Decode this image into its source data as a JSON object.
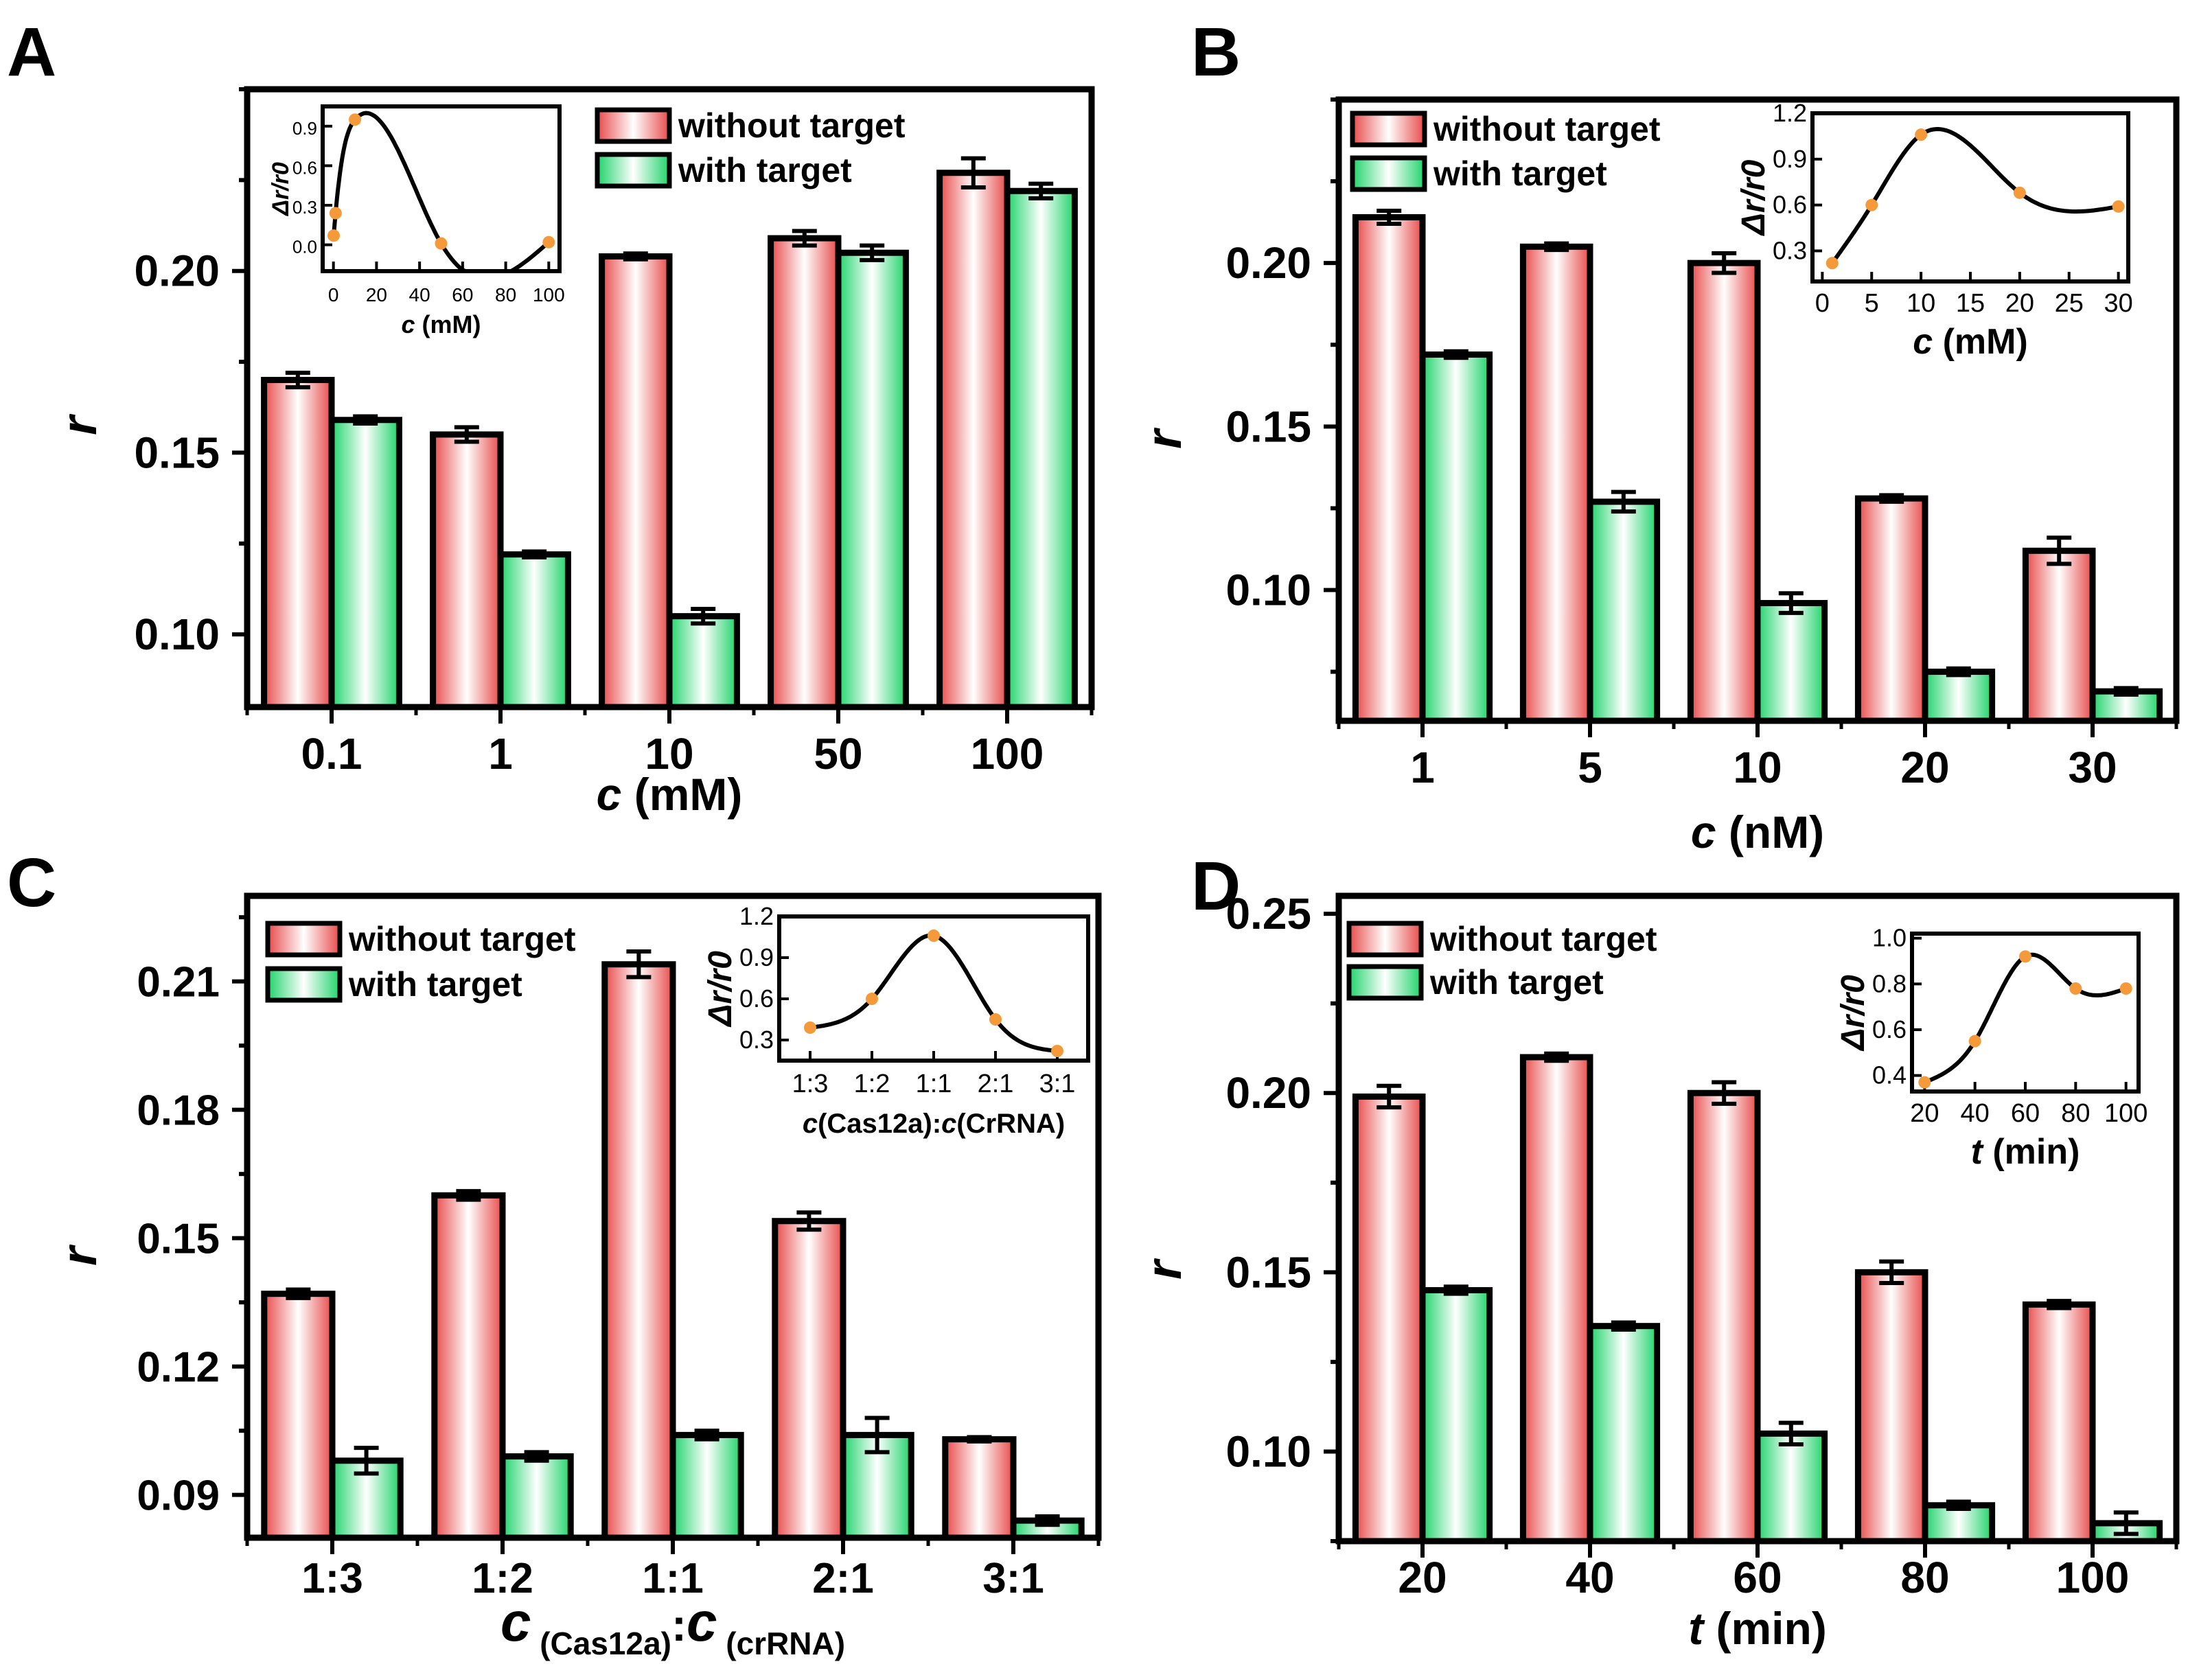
{
  "chart_data": [
    {
      "panel_label": "A",
      "type": "bar",
      "categories": [
        "0.1",
        "1",
        "10",
        "50",
        "100"
      ],
      "series": [
        {
          "name": "without target",
          "values": [
            0.17,
            0.155,
            0.204,
            0.209,
            0.227
          ],
          "errors": [
            0.002,
            0.002,
            0.0008,
            0.002,
            0.004
          ]
        },
        {
          "name": "with target",
          "values": [
            0.159,
            0.122,
            0.105,
            0.205,
            0.222
          ],
          "errors": [
            0.001,
            0.0008,
            0.002,
            0.002,
            0.002
          ]
        }
      ],
      "yticks": [
        "0.10",
        "0.15",
        "0.20"
      ],
      "ylim": [
        0.08,
        0.25
      ],
      "ylabel": "r",
      "xlabel": {
        "var": "c",
        "unit": " (mM)"
      },
      "inset": {
        "type": "line",
        "x": [
          0.1,
          1,
          10,
          50,
          100
        ],
        "y": [
          0.07,
          0.24,
          0.95,
          0.01,
          0.02
        ],
        "xlim": [
          -5,
          105
        ],
        "ylim": [
          -0.2,
          1.05
        ],
        "xticks": [
          "0",
          "20",
          "40",
          "60",
          "80",
          "100"
        ],
        "yticks": [
          "0.0",
          "0.3",
          "0.6",
          "0.9"
        ],
        "ylabel": "Δr/r0",
        "xlabel": {
          "var": "c",
          "unit": " (mM)"
        }
      }
    },
    {
      "panel_label": "B",
      "type": "bar",
      "categories": [
        "1",
        "5",
        "10",
        "20",
        "30"
      ],
      "series": [
        {
          "name": "without target",
          "values": [
            0.214,
            0.205,
            0.2,
            0.128,
            0.112
          ],
          "errors": [
            0.002,
            0.001,
            0.003,
            0.001,
            0.004
          ]
        },
        {
          "name": "with target",
          "values": [
            0.172,
            0.127,
            0.096,
            0.075,
            0.069
          ],
          "errors": [
            0.001,
            0.003,
            0.003,
            0.001,
            0.001
          ]
        }
      ],
      "yticks": [
        "0.10",
        "0.15",
        "0.20"
      ],
      "ylim": [
        0.06,
        0.25
      ],
      "ylabel": "r",
      "xlabel": {
        "var": "c",
        "unit": " (nM)"
      },
      "inset": {
        "type": "line",
        "x": [
          1,
          5,
          10,
          20,
          30
        ],
        "y": [
          0.22,
          0.6,
          1.06,
          0.68,
          0.59
        ],
        "xlim": [
          -1,
          31
        ],
        "ylim": [
          0.1,
          1.2
        ],
        "xticks": [
          "0",
          "5",
          "10",
          "15",
          "20",
          "25",
          "30"
        ],
        "yticks": [
          "0.3",
          "0.6",
          "0.9",
          "1.2"
        ],
        "ylabel": "Δr/r0",
        "xlabel": {
          "var": "c",
          "unit": " (mM)"
        }
      }
    },
    {
      "panel_label": "C",
      "type": "bar",
      "categories": [
        "1:3",
        "1:2",
        "1:1",
        "2:1",
        "3:1"
      ],
      "series": [
        {
          "name": "without target",
          "values": [
            0.137,
            0.16,
            0.214,
            0.154,
            0.103
          ],
          "errors": [
            0.001,
            0.001,
            0.003,
            0.002,
            0.0005
          ]
        },
        {
          "name": "with target",
          "values": [
            0.098,
            0.099,
            0.104,
            0.104,
            0.084
          ],
          "errors": [
            0.003,
            0.001,
            0.001,
            0.004,
            0.001
          ]
        }
      ],
      "yticks": [
        "0.09",
        "0.12",
        "0.15",
        "0.18",
        "0.21"
      ],
      "ylim": [
        0.08,
        0.23
      ],
      "ylabel": "r",
      "xlabel": {
        "var1": "c",
        "sub1": " (Cas12a)",
        "sep": ":",
        "var2": "c",
        "sub2": " (crRNA)"
      },
      "inset": {
        "type": "line",
        "x": [
          "1:3",
          "1:2",
          "1:1",
          "2:1",
          "3:1"
        ],
        "y": [
          0.39,
          0.6,
          1.06,
          0.45,
          0.22
        ],
        "ylim": [
          0.15,
          1.2
        ],
        "yticks": [
          "0.3",
          "0.6",
          "0.9",
          "1.2"
        ],
        "ylabel": "Δr/r0",
        "xlabel": {
          "var1": "c",
          "mid": "(Cas12a):",
          "var2": "c",
          "end": "(CrRNA)"
        }
      }
    },
    {
      "panel_label": "D",
      "type": "bar",
      "categories": [
        "20",
        "40",
        "60",
        "80",
        "100"
      ],
      "series": [
        {
          "name": "without target",
          "values": [
            0.199,
            0.21,
            0.2,
            0.15,
            0.141
          ],
          "errors": [
            0.003,
            0.001,
            0.003,
            0.003,
            0.001
          ]
        },
        {
          "name": "with target",
          "values": [
            0.145,
            0.135,
            0.105,
            0.085,
            0.08
          ],
          "errors": [
            0.001,
            0.001,
            0.003,
            0.001,
            0.003
          ]
        }
      ],
      "yticks": [
        "0.10",
        "0.15",
        "0.20",
        "0.25"
      ],
      "ylim": [
        0.075,
        0.255
      ],
      "ylabel": "r",
      "xlabel": {
        "var": "t",
        "unit": " (min)"
      },
      "inset": {
        "type": "line",
        "x": [
          20,
          40,
          60,
          80,
          100
        ],
        "y": [
          0.37,
          0.55,
          0.92,
          0.78,
          0.78
        ],
        "xlim": [
          15,
          105
        ],
        "ylim": [
          0.33,
          1.02
        ],
        "xticks": [
          "20",
          "40",
          "60",
          "80",
          "100"
        ],
        "yticks": [
          "0.4",
          "0.6",
          "0.8",
          "1.0"
        ],
        "ylabel": "Δr/r0",
        "xlabel": {
          "var": "t",
          "unit": " (min)"
        }
      }
    }
  ],
  "colors": {
    "without_target": "#e84a4a",
    "with_target": "#1fd36a",
    "marker": "#f59a3a",
    "axis": "#000000"
  }
}
